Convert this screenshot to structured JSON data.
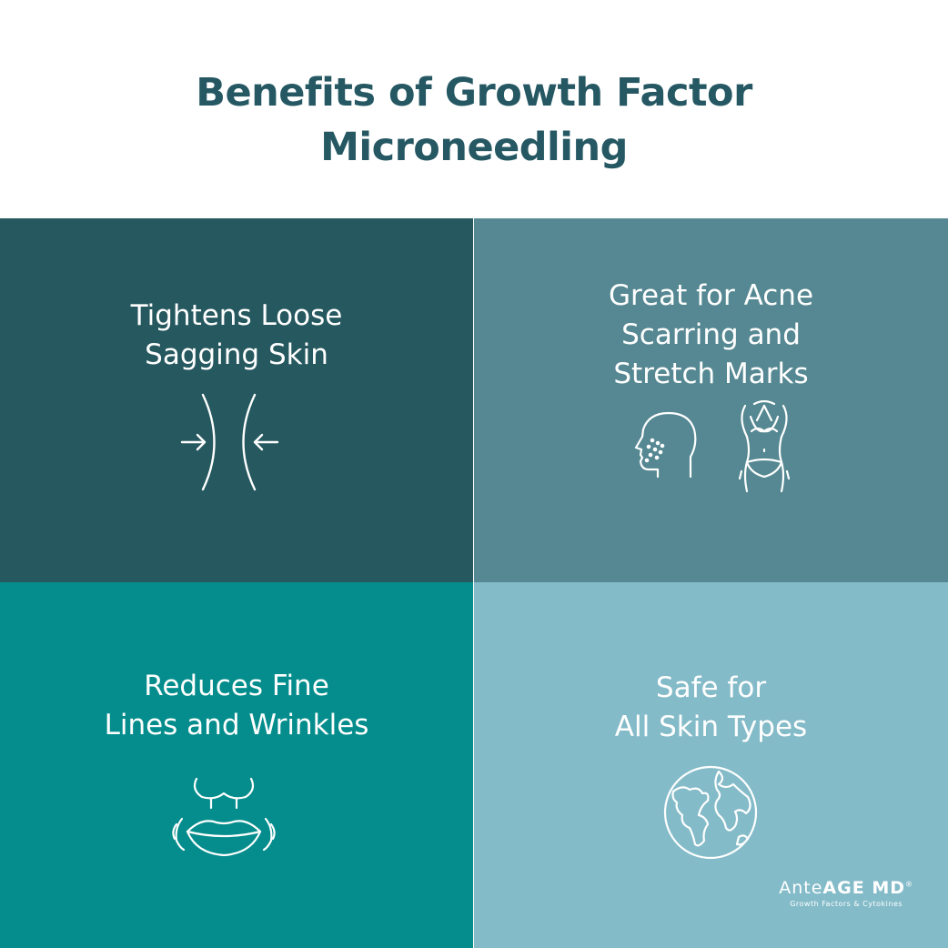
{
  "title": {
    "line1": "Benefits of Growth Factor",
    "line2": "Microneedling"
  },
  "benefits": [
    {
      "line1": "Tightens Loose",
      "line2": "Sagging Skin",
      "icon": "tighten-arrows-icon"
    },
    {
      "line1": "Great for Acne",
      "line2": "Scarring and",
      "line3": "Stretch Marks",
      "icons": [
        "face-acne-icon",
        "body-silhouette-icon"
      ]
    },
    {
      "line1": "Reduces Fine",
      "line2": "Lines and Wrinkles",
      "icon": "lips-icon"
    },
    {
      "line1": "Safe for",
      "line2": "All Skin Types",
      "icon": "globe-icon"
    }
  ],
  "brand": {
    "name_light": "Ante",
    "name_bold": "AGE MD",
    "registered": "®",
    "tagline": "Growth Factors & Cytokines"
  },
  "colors": {
    "title": "#255863",
    "tile1": "#25585f",
    "tile2": "#558892",
    "tile3": "#048d8c",
    "tile4": "#84bbc8"
  }
}
